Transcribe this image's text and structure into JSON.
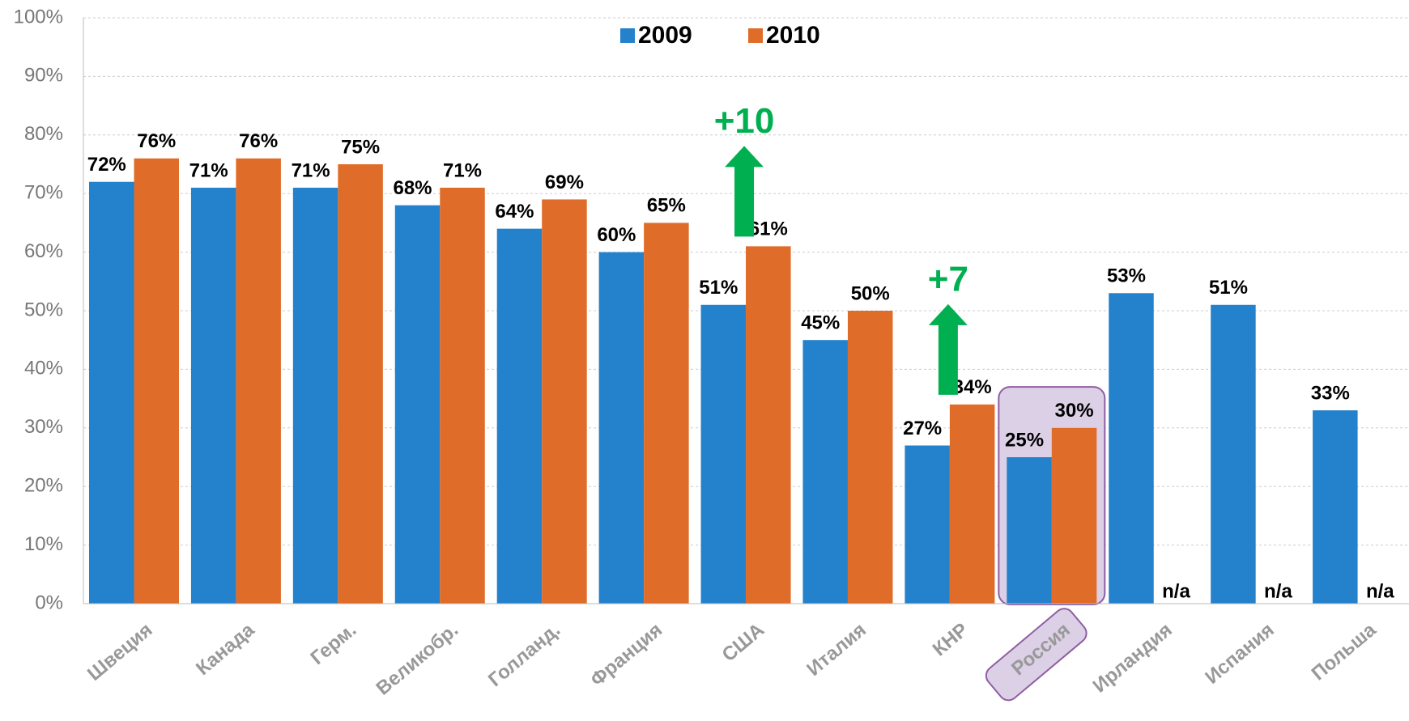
{
  "chart_data": {
    "type": "bar",
    "categories": [
      "Швеция",
      "Канада",
      "Герм.",
      "Великобр.",
      "Голланд.",
      "Франция",
      "США",
      "Италия",
      "КНР",
      "Россия",
      "Ирландия",
      "Испания",
      "Польша"
    ],
    "series": [
      {
        "name": "2009",
        "color": "#2481cc",
        "values": [
          72,
          71,
          71,
          68,
          64,
          60,
          51,
          45,
          27,
          25,
          53,
          51,
          33
        ],
        "value_labels": [
          "72%",
          "71%",
          "71%",
          "68%",
          "64%",
          "60%",
          "51%",
          "45%",
          "27%",
          "25%",
          "53%",
          "51%",
          "33%"
        ]
      },
      {
        "name": "2010",
        "color": "#e06c29",
        "values": [
          76,
          76,
          75,
          71,
          69,
          65,
          61,
          50,
          34,
          30,
          null,
          null,
          null
        ],
        "value_labels": [
          "76%",
          "76%",
          "75%",
          "71%",
          "69%",
          "65%",
          "61%",
          "50%",
          "34%",
          "30%",
          "n/a",
          "n/a",
          "n/a"
        ]
      }
    ],
    "ylim": [
      0,
      100
    ],
    "yticks": [
      {
        "value": 0,
        "label": "0%"
      },
      {
        "value": 10,
        "label": "10%"
      },
      {
        "value": 20,
        "label": "20%"
      },
      {
        "value": 30,
        "label": "30%"
      },
      {
        "value": 40,
        "label": "40%"
      },
      {
        "value": 50,
        "label": "50%"
      },
      {
        "value": 60,
        "label": "60%"
      },
      {
        "value": 70,
        "label": "70%"
      },
      {
        "value": 80,
        "label": "80%"
      },
      {
        "value": 90,
        "label": "90%"
      },
      {
        "value": 100,
        "label": "100%"
      }
    ],
    "grid": true,
    "highlight": "Россия",
    "annotations": [
      {
        "text": "+10",
        "category": "США"
      },
      {
        "text": "+7",
        "category": "КНР"
      }
    ]
  }
}
